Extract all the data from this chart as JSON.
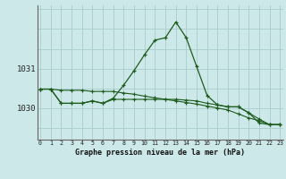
{
  "title": "Graphe pression niveau de la mer (hPa)",
  "bg_color": "#cce8e8",
  "grid_color": "#aacccc",
  "line_color": "#1e5c1e",
  "x_ticks": [
    0,
    1,
    2,
    3,
    4,
    5,
    6,
    7,
    8,
    9,
    10,
    11,
    12,
    13,
    14,
    15,
    16,
    17,
    18,
    19,
    20,
    21,
    22,
    23
  ],
  "y_ticks": [
    1030,
    1031
  ],
  "ylim": [
    1029.2,
    1032.6
  ],
  "xlim": [
    -0.3,
    23.3
  ],
  "series1": [
    1030.48,
    1030.48,
    1030.12,
    1030.12,
    1030.12,
    1030.18,
    1030.12,
    1030.25,
    1030.58,
    1030.95,
    1031.35,
    1031.72,
    1031.78,
    1032.18,
    1031.78,
    1031.05,
    1030.32,
    1030.08,
    1030.03,
    1030.03,
    1029.88,
    1029.62,
    1029.58,
    1029.58
  ],
  "series2": [
    1030.48,
    1030.48,
    1030.12,
    1030.12,
    1030.12,
    1030.18,
    1030.12,
    1030.22,
    1030.22,
    1030.22,
    1030.22,
    1030.22,
    1030.22,
    1030.22,
    1030.2,
    1030.18,
    1030.12,
    1030.08,
    1030.03,
    1030.03,
    1029.88,
    1029.72,
    1029.58,
    1029.58
  ],
  "series3": [
    1030.48,
    1030.48,
    1030.45,
    1030.45,
    1030.45,
    1030.42,
    1030.42,
    1030.42,
    1030.38,
    1030.35,
    1030.3,
    1030.26,
    1030.22,
    1030.18,
    1030.14,
    1030.1,
    1030.05,
    1030.0,
    1029.95,
    1029.85,
    1029.75,
    1029.68,
    1029.58,
    1029.58
  ]
}
